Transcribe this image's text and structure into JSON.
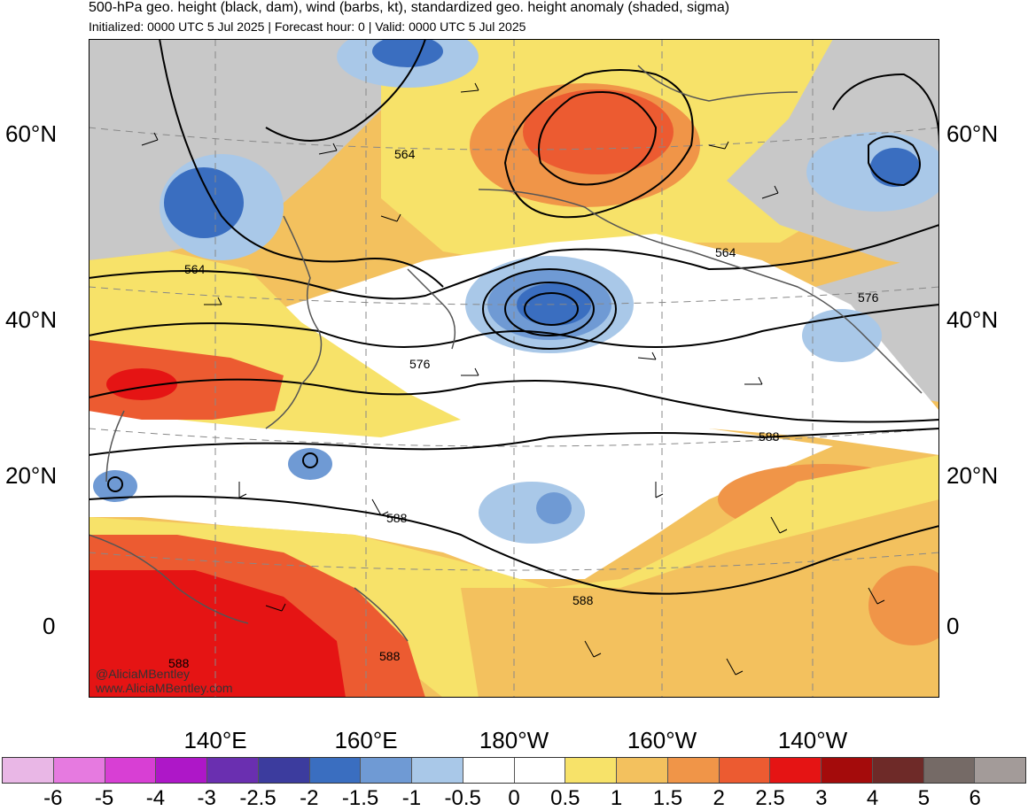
{
  "header": {
    "title": "500-hPa geo. height (black, dam), wind (barbs, kt), standardized geo. height anomaly (shaded, sigma)",
    "subtitle": "Initialized: 0000 UTC 5 Jul 2025 | Forecast hour: 0 | Valid: 0000 UTC 5 Jul 2025"
  },
  "map": {
    "latitude_labels": [
      "60°N",
      "40°N",
      "20°N",
      "0"
    ],
    "longitude_labels": [
      "140°E",
      "160°E",
      "180°W",
      "160°W",
      "140°W"
    ],
    "contour_labels": [
      "564",
      "564",
      "564",
      "576",
      "576",
      "588",
      "588",
      "588",
      "588",
      "588"
    ],
    "credit_lines": [
      "@AliciaMBentley",
      "www.AliciaMBentley.com"
    ],
    "colors": {
      "land_gray": "#c8c8c8",
      "ocean_white": "#ffffff",
      "contour": "#000000",
      "coastline": "#555555"
    }
  },
  "colorbar": {
    "tick_labels": [
      "-6",
      "-5",
      "-4",
      "-3",
      "-2.5",
      "-2",
      "-1.5",
      "-1",
      "-0.5",
      "0",
      "0.5",
      "1",
      "1.5",
      "2",
      "2.5",
      "3",
      "4",
      "5",
      "6"
    ],
    "colors": [
      "#e9b7e6",
      "#e67ae0",
      "#d83fd4",
      "#ae17c8",
      "#6a2fb0",
      "#3c3c9e",
      "#3a6ec0",
      "#6f9ad4",
      "#a9c8e8",
      "#ffffff",
      "#ffffff",
      "#f7e269",
      "#f3c15e",
      "#f09548",
      "#ec5b31",
      "#e51414",
      "#a40b0b",
      "#6e2a28",
      "#756a66",
      "#a39b99"
    ]
  }
}
